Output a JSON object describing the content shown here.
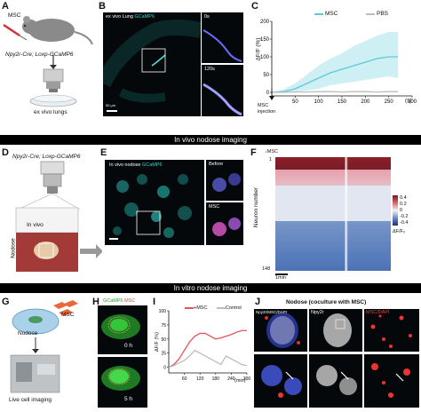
{
  "panels": {
    "A": {
      "letter": "A",
      "msc": "MSC",
      "mouse": "Npy2r-Cre; Loxp-GCaMP6",
      "lungs": "ex vivo lungs"
    },
    "B": {
      "letter": "B",
      "title": "ex vivo Lung",
      "gcamp": "GCaMP6",
      "t0": "0s",
      "t120": "120s",
      "scale": "50 μm"
    },
    "C": {
      "letter": "C",
      "legend_msc": "MSC",
      "legend_pbs": "PBS",
      "ylabel": "ΔF/F (%)",
      "xlabel": "(s)",
      "injection": "MSC\ninjection"
    },
    "banner1": "In vivo nodose imaging",
    "D": {
      "letter": "D",
      "mouse": "Npy2r-Cre; Loxp-GCaMP6",
      "invivo": "In vivo",
      "nodose": "Nodose"
    },
    "E": {
      "letter": "E",
      "title": "In vivo nodose",
      "gcamp": "GCaMP6",
      "before": "Before",
      "msc": "MSC"
    },
    "F": {
      "letter": "F",
      "msc": "MSC",
      "ylabel": "Neuron number",
      "top": "1",
      "bottom": "148",
      "scale": "1min",
      "cbar_label": "ΔF/F₀",
      "cbar_ticks": [
        "0.4",
        "0.2",
        "0",
        "-0.2",
        "-0.4"
      ]
    },
    "banner2": "In vitro nodose imaging",
    "G": {
      "letter": "G",
      "msc": "MSC",
      "nodose": "Nodose",
      "caption": "Live cell imaging"
    },
    "H": {
      "letter": "H",
      "gcamp": "GCaMP6",
      "msc": "MSC",
      "t0": "0 h",
      "t5": "5 h"
    },
    "I": {
      "letter": "I",
      "legend_msc": "+MSC",
      "legend_ctrl": "Control",
      "ylabel": "ΔF/F (%)",
      "xlabel": "(min)"
    },
    "J": {
      "letter": "J",
      "title": "Nodose (coculture with MSC)",
      "ch1": "Npy2r/MSC/DAPI",
      "ch2": "Npy2r",
      "ch3": "MSC/DAPI"
    }
  },
  "chart_data": [
    {
      "type": "line",
      "panel": "C",
      "x": [
        0,
        25,
        50,
        75,
        100,
        125,
        150,
        175,
        200,
        225,
        250,
        270
      ],
      "series": [
        {
          "name": "MSC",
          "values": [
            0,
            2,
            10,
            25,
            40,
            55,
            65,
            75,
            85,
            95,
            100,
            100
          ],
          "band": [
            [
              0,
              2
            ],
            [
              0,
              8
            ],
            [
              0,
              25
            ],
            [
              5,
              50
            ],
            [
              10,
              75
            ],
            [
              20,
              95
            ],
            [
              25,
              110
            ],
            [
              30,
              130
            ],
            [
              35,
              145
            ],
            [
              40,
              160
            ],
            [
              45,
              170
            ],
            [
              40,
              170
            ]
          ]
        },
        {
          "name": "PBS",
          "values": [
            0,
            0,
            1,
            1,
            2,
            2,
            1,
            2,
            2,
            1,
            2,
            2
          ]
        }
      ],
      "xticks": [
        50,
        100,
        150,
        200,
        250,
        300
      ],
      "yticks": [
        0,
        50,
        100,
        150,
        200
      ],
      "xlim": [
        0,
        300
      ],
      "ylim": [
        -10,
        200
      ]
    },
    {
      "type": "line",
      "panel": "I",
      "x": [
        0,
        20,
        40,
        60,
        80,
        100,
        120,
        140,
        160,
        180,
        200,
        220,
        240,
        260,
        280,
        300
      ],
      "series": [
        {
          "name": "+MSC",
          "values": [
            0,
            5,
            15,
            30,
            45,
            55,
            60,
            60,
            55,
            50,
            52,
            55,
            58,
            62,
            65,
            65
          ]
        },
        {
          "name": "Control",
          "values": [
            0,
            3,
            8,
            12,
            20,
            30,
            25,
            20,
            15,
            10,
            5,
            20,
            15,
            10,
            5,
            3
          ]
        }
      ],
      "xticks": [
        60,
        120,
        180,
        240,
        300
      ],
      "yticks": [
        0,
        25,
        50,
        75,
        100
      ],
      "xlim": [
        0,
        300
      ],
      "ylim": [
        -10,
        100
      ]
    }
  ]
}
